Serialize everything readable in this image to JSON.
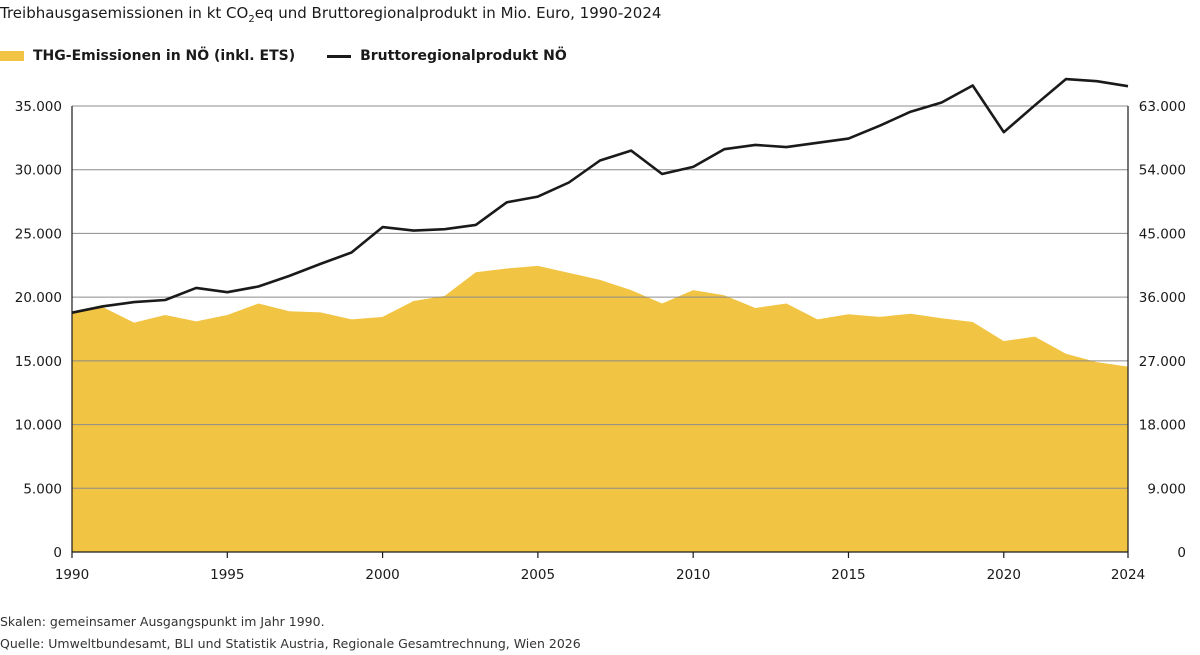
{
  "title": {
    "prefix": "Treibhausgasemissionen in kt CO",
    "sub": "2",
    "suffix": "eq und Bruttoregionalprodukt in Mio. Euro, 1990-2024"
  },
  "colors": {
    "area": "#f2c443",
    "line": "#1a1a1a",
    "grid": "#8c8c8c"
  },
  "chart_data": {
    "type": "area",
    "title": "Treibhausgasemissionen in kt CO2eq und Bruttoregionalprodukt in Mio. Euro, 1990-2024",
    "x": [
      1990,
      1991,
      1992,
      1993,
      1994,
      1995,
      1996,
      1997,
      1998,
      1999,
      2000,
      2001,
      2002,
      2003,
      2004,
      2005,
      2006,
      2007,
      2008,
      2009,
      2010,
      2011,
      2012,
      2013,
      2014,
      2015,
      2016,
      2017,
      2018,
      2019,
      2020,
      2021,
      2022,
      2023,
      2024
    ],
    "xticks": [
      "1990",
      "1995",
      "2000",
      "2005",
      "2010",
      "2015",
      "2020",
      "2024"
    ],
    "xtick_values": [
      1990,
      1995,
      2000,
      2005,
      2010,
      2015,
      2020,
      2024
    ],
    "xlim": [
      1990,
      2024
    ],
    "left_axis": {
      "ylim": [
        0,
        35000
      ],
      "ticks": [
        "0",
        "5.000",
        "10.000",
        "15.000",
        "20.000",
        "25.000",
        "30.000",
        "35.000"
      ],
      "tick_values": [
        0,
        5000,
        10000,
        15000,
        20000,
        25000,
        30000,
        35000
      ]
    },
    "right_axis": {
      "ylim": [
        0,
        63000
      ],
      "ticks": [
        "0",
        "9.000",
        "18.000",
        "27.000",
        "36.000",
        "45.000",
        "54.000",
        "63.000"
      ],
      "tick_values": [
        0,
        9000,
        18000,
        27000,
        36000,
        45000,
        54000,
        63000
      ]
    },
    "grid": true,
    "legend_position": "top-left",
    "series": [
      {
        "name": "THG-Emissionen in NÖ (inkl. ETS)",
        "type": "area",
        "axis": "left",
        "values": [
          18800,
          19200,
          18000,
          18600,
          18100,
          18600,
          19500,
          18900,
          18800,
          18250,
          18450,
          19700,
          20100,
          21950,
          22250,
          22450,
          21900,
          21350,
          20550,
          19500,
          20550,
          20150,
          19150,
          19500,
          18250,
          18650,
          18450,
          18700,
          18350,
          18050,
          16550,
          16900,
          15550,
          14900,
          14550
        ]
      },
      {
        "name": "Bruttoregionalprodukt NÖ",
        "type": "line",
        "axis": "right",
        "values": [
          33800,
          34700,
          35300,
          35600,
          37300,
          36700,
          37500,
          39000,
          40700,
          42300,
          45900,
          45400,
          45600,
          46200,
          49400,
          50200,
          52200,
          55300,
          56700,
          53400,
          54400,
          56900,
          57500,
          57200,
          57800,
          58400,
          60200,
          62200,
          63500,
          65900,
          59300,
          63100,
          66800,
          66500,
          65800
        ]
      }
    ]
  },
  "notes": {
    "scales": "Skalen: gemeinsamer Ausgangspunkt im Jahr 1990.",
    "source": "Quelle: Umweltbundesamt, BLI und Statistik Austria, Regionale Gesamtrechnung, Wien 2026"
  }
}
